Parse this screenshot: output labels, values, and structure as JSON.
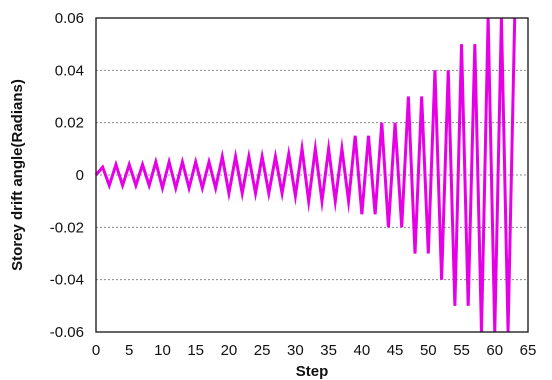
{
  "chart_data": {
    "type": "line",
    "xlabel": "Step",
    "ylabel": "Storey drift angle(Radians)",
    "xlim": [
      0,
      65
    ],
    "ylim": [
      -0.06,
      0.06
    ],
    "x_ticks": [
      0,
      5,
      10,
      15,
      20,
      25,
      30,
      35,
      40,
      45,
      50,
      55,
      60,
      65
    ],
    "x_tick_labels": [
      "0",
      "5",
      "10",
      "15",
      "20",
      "25",
      "30",
      "35",
      "40",
      "45",
      "50",
      "55",
      "60",
      "65"
    ],
    "y_ticks": [
      -0.06,
      -0.04,
      -0.02,
      0,
      0.02,
      0.04,
      0.06
    ],
    "y_tick_labels": [
      "-0.06",
      "-0.04",
      "-0.02",
      "0",
      "0.02",
      "0.04",
      "0.06"
    ],
    "grid": "horizontal dashed",
    "line_color": "#e600e6",
    "series": [
      {
        "x": [
          0,
          1,
          2,
          3,
          4,
          5,
          6,
          7,
          8,
          9,
          10,
          11,
          12,
          13,
          14,
          15,
          16,
          17,
          18,
          19,
          20,
          21,
          22,
          23,
          24,
          25,
          26,
          27,
          28,
          29,
          30,
          31,
          32,
          33,
          34,
          35,
          36,
          37,
          38,
          39,
          40,
          41,
          42,
          43,
          44,
          45,
          46,
          47,
          48,
          49,
          50,
          51,
          52,
          53,
          54,
          55,
          56,
          57,
          58,
          59,
          60,
          61,
          62,
          63
        ],
        "y": [
          0,
          0.003,
          -0.004,
          0.004,
          -0.004,
          0.004,
          -0.004,
          0.004,
          -0.004,
          0.005,
          -0.005,
          0.005,
          -0.005,
          0.005,
          -0.005,
          0.005,
          -0.005,
          0.005,
          -0.005,
          0.007,
          -0.007,
          0.007,
          -0.007,
          0.007,
          -0.007,
          0.007,
          -0.007,
          0.007,
          -0.007,
          0.008,
          -0.008,
          0.01,
          -0.01,
          0.01,
          -0.01,
          0.01,
          -0.01,
          0.01,
          -0.01,
          0.015,
          -0.015,
          0.015,
          -0.015,
          0.02,
          -0.02,
          0.02,
          -0.02,
          0.03,
          -0.03,
          0.03,
          -0.03,
          0.04,
          -0.04,
          0.04,
          -0.05,
          0.05,
          -0.05,
          0.05,
          -0.06,
          0.06,
          -0.06,
          0.06,
          -0.06,
          0.06
        ]
      }
    ]
  }
}
